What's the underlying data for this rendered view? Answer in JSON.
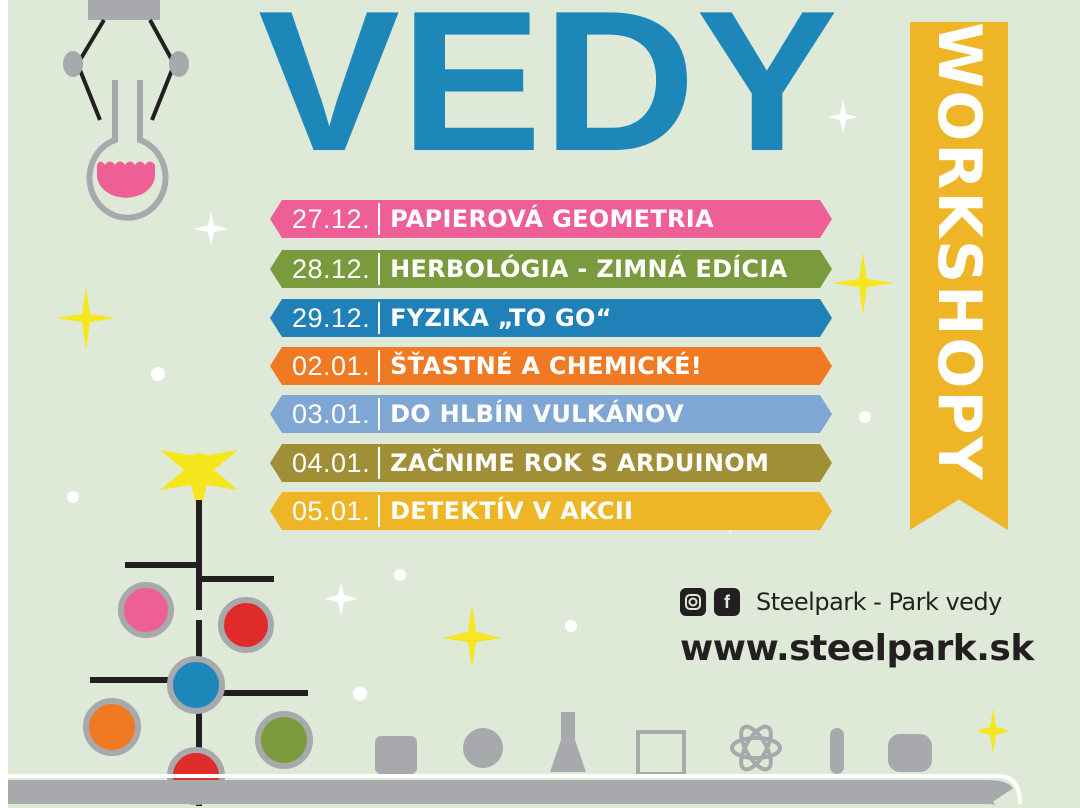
{
  "header": {
    "title": "VEDY",
    "ribbon_label": "WORKSHOPY"
  },
  "workshops": [
    {
      "date": "27.12.",
      "title": "PAPIEROVÁ GEOMETRIA",
      "color": "#ee5f95"
    },
    {
      "date": "28.12.",
      "title": "HERBOLÓGIA - ZIMNÁ EDÍCIA",
      "color": "#7a9b3d"
    },
    {
      "date": "29.12.",
      "title": "FYZIKA „TO GO“",
      "color": "#2080b8"
    },
    {
      "date": "02.01.",
      "title": "ŠŤASTNÉ A CHEMICKÉ!",
      "color": "#f07a24"
    },
    {
      "date": "03.01.",
      "title": "DO HLBÍN VULKÁNOV",
      "color": "#80a7d3"
    },
    {
      "date": "04.01.",
      "title": "ZAČNIME ROK S ARDUINOM",
      "color": "#a18f38"
    },
    {
      "date": "05.01.",
      "title": "DETEKTÍV V AKCII",
      "color": "#eeb627"
    }
  ],
  "footer": {
    "social_icons": [
      "instagram-icon",
      "facebook-icon"
    ],
    "social_name": "Steelpark - Park vedy",
    "website": "www.steelpark.sk"
  },
  "colors": {
    "background": "#dfe9d8",
    "title_blue": "#1e87b9",
    "ribbon_yellow": "#eeb627",
    "text_dark": "#231f20"
  }
}
